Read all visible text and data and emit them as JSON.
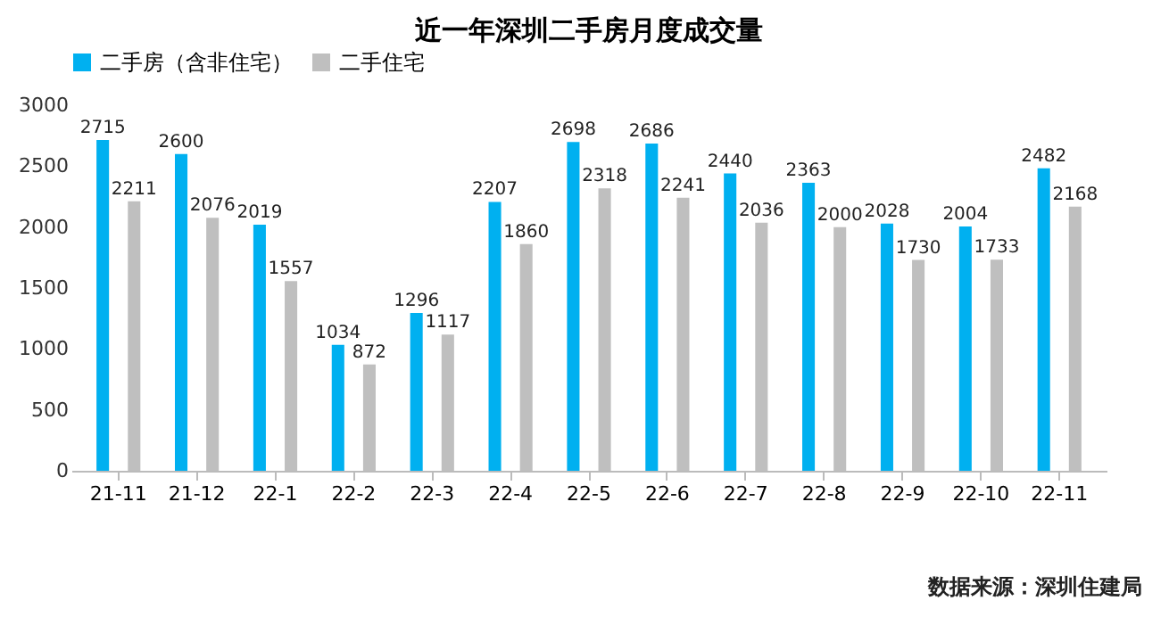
{
  "chart_data": {
    "type": "bar",
    "title": "近一年深圳二手房月度成交量",
    "categories": [
      "21-11",
      "21-12",
      "22-1",
      "22-2",
      "22-3",
      "22-4",
      "22-5",
      "22-6",
      "22-7",
      "22-8",
      "22-9",
      "22-10",
      "22-11"
    ],
    "series": [
      {
        "name": "二手房（含非住宅）",
        "color": "#00b0f0",
        "values": [
          2715,
          2600,
          2019,
          1034,
          1296,
          2207,
          2698,
          2686,
          2440,
          2363,
          2028,
          2004,
          2482
        ]
      },
      {
        "name": "二手住宅",
        "color": "#bfbfbf",
        "values": [
          2211,
          2076,
          1557,
          872,
          1117,
          1860,
          2318,
          2241,
          2036,
          2000,
          1730,
          1733,
          2168
        ]
      }
    ],
    "ylim": [
      0,
      3000
    ],
    "yticks": [
      0,
      500,
      1000,
      1500,
      2000,
      2500,
      3000
    ],
    "grid": false,
    "legend": "top",
    "data_labels": true,
    "annotations": [
      "数据来源：深圳住建局"
    ]
  }
}
